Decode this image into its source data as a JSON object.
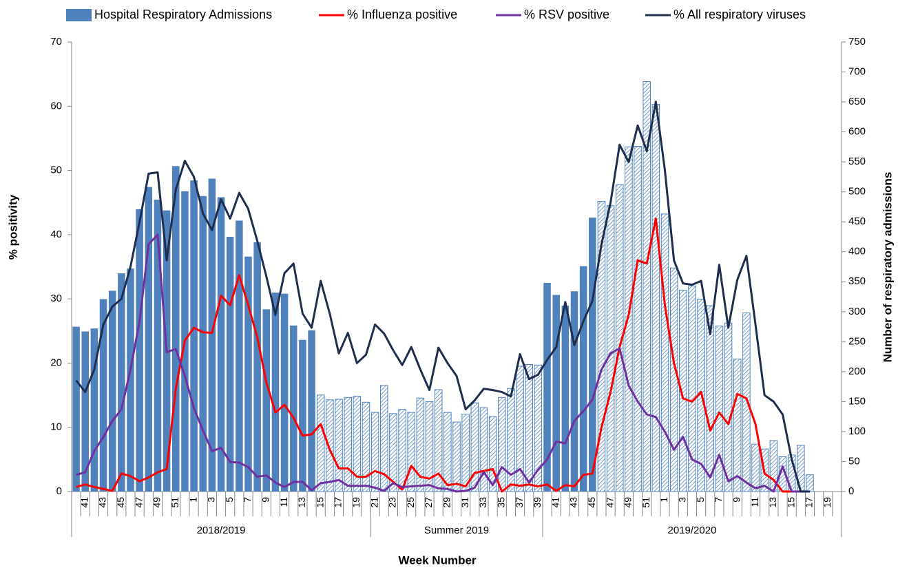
{
  "chart_data": {
    "type": "combo",
    "xlabel": "Week Number",
    "ylabel": "% positivity",
    "y2label": "Number of respiratory admissions",
    "ylim": [
      0,
      70
    ],
    "yticks": [
      0,
      10,
      20,
      30,
      40,
      50,
      60,
      70
    ],
    "y2lim": [
      0,
      750
    ],
    "y2ticks": [
      0,
      50,
      100,
      150,
      200,
      250,
      300,
      350,
      400,
      450,
      500,
      550,
      600,
      650,
      700,
      750
    ],
    "legend": "top",
    "categories": [
      null,
      "41",
      null,
      "43",
      null,
      "45",
      null,
      "47",
      null,
      "49",
      null,
      "51",
      null,
      "1",
      null,
      "3",
      null,
      "5",
      null,
      "7",
      null,
      "9",
      null,
      "11",
      null,
      "13",
      null,
      "15",
      null,
      "17",
      null,
      "19",
      null,
      "21",
      null,
      "23",
      null,
      "25",
      null,
      "27",
      null,
      "29",
      null,
      "31",
      null,
      "33",
      null,
      "35",
      null,
      "37",
      null,
      "39",
      null,
      "41",
      null,
      "43",
      null,
      "45",
      null,
      "47",
      null,
      "49",
      null,
      "51",
      null,
      "1",
      null,
      "3",
      null,
      "5",
      null,
      "7",
      null,
      "9",
      null,
      "11",
      null,
      "13",
      null,
      "15",
      null,
      "17",
      null,
      "19",
      null
    ],
    "groups": [
      {
        "name": "2018/2019",
        "count": 33
      },
      {
        "name": "Summer 2019",
        "count": 19
      },
      {
        "name": "2019/2020",
        "count": 33
      }
    ],
    "series": [
      {
        "name": "Hospital Respiratory Admissions",
        "type": "bar",
        "axis": "y2",
        "color": "#4f81bd",
        "values": [
          275,
          267,
          272,
          321,
          335,
          364,
          372,
          471,
          508,
          487,
          469,
          543,
          501,
          519,
          493,
          522,
          491,
          425,
          452,
          392,
          416,
          304,
          332,
          330,
          277,
          253,
          269,
          161,
          153,
          154,
          157,
          159,
          149,
          132,
          177,
          130,
          137,
          132,
          156,
          150,
          170,
          132,
          116,
          129,
          148,
          140,
          125,
          157,
          172,
          209,
          212,
          211,
          348,
          328,
          310,
          334,
          376,
          457,
          484,
          477,
          512,
          575,
          576,
          684,
          646,
          463,
          373,
          336,
          343,
          321,
          310,
          276,
          281,
          221,
          298,
          79,
          71,
          85,
          58,
          61,
          77,
          28,
          null,
          null,
          null
        ],
        "hatched": [
          false,
          false,
          false,
          false,
          false,
          false,
          false,
          false,
          false,
          false,
          false,
          false,
          false,
          false,
          false,
          false,
          false,
          false,
          false,
          false,
          false,
          false,
          false,
          false,
          false,
          false,
          false,
          true,
          true,
          true,
          true,
          true,
          true,
          true,
          true,
          true,
          true,
          true,
          true,
          true,
          true,
          true,
          true,
          true,
          true,
          true,
          true,
          true,
          true,
          true,
          true,
          true,
          false,
          false,
          false,
          false,
          false,
          false,
          true,
          true,
          true,
          true,
          true,
          true,
          true,
          true,
          true,
          true,
          true,
          true,
          true,
          true,
          true,
          true,
          true,
          true,
          true,
          true,
          true,
          true,
          true,
          true,
          true,
          true,
          true
        ]
      },
      {
        "name": "% Influenza positive",
        "type": "line",
        "color": "#ff0000",
        "values": [
          0.7,
          1.1,
          0.7,
          0.4,
          0.1,
          2.8,
          2.4,
          1.6,
          2.2,
          3,
          3.5,
          16,
          23.5,
          25.5,
          24.8,
          24.7,
          30.5,
          29,
          33.7,
          29,
          24,
          17,
          12.3,
          13.5,
          11.5,
          8.7,
          8.9,
          10.5,
          6.5,
          3.6,
          3.6,
          2.3,
          2.3,
          3.2,
          2.7,
          1.5,
          0.3,
          4,
          2.3,
          2,
          2.8,
          1,
          1.2,
          0.8,
          2.9,
          3.2,
          3.5,
          0,
          1.1,
          0.9,
          1.1,
          0.8,
          1.1,
          0.1,
          1,
          0.8,
          2.6,
          2.8,
          10,
          15.5,
          22.5,
          27.5,
          36,
          35.5,
          42.5,
          29,
          20,
          14.5,
          14,
          15.5,
          9.5,
          12.3,
          10.5,
          15.2,
          14.5,
          10.5,
          2.8,
          1.8,
          0,
          0,
          0,
          0,
          null,
          null,
          null
        ]
      },
      {
        "name": "% RSV positive",
        "type": "line",
        "color": "#7030a0",
        "values": [
          2.6,
          3,
          6.3,
          8.5,
          11,
          12.8,
          19,
          26.5,
          38.5,
          40,
          21.7,
          22.2,
          18,
          13,
          9.5,
          6.3,
          6.8,
          4.6,
          4.5,
          3.8,
          2.3,
          2.5,
          1.4,
          0.7,
          1.5,
          1.5,
          0.2,
          1.3,
          1.5,
          1.8,
          0.9,
          0.9,
          0.9,
          0.6,
          0.1,
          1.3,
          0.7,
          0.8,
          0.9,
          1,
          0.5,
          0.4,
          0,
          0.1,
          0.6,
          3,
          1,
          3.8,
          2.6,
          3.5,
          1.4,
          3.4,
          5,
          7.8,
          7.5,
          11,
          12.5,
          14.3,
          19,
          21.5,
          22.3,
          16.5,
          14,
          12,
          11.6,
          9.3,
          6.5,
          8.5,
          5,
          4.3,
          2.2,
          5.7,
          1.6,
          2.4,
          1.4,
          0.5,
          0.9,
          0,
          3.9,
          0,
          0,
          0,
          null,
          null,
          null
        ]
      },
      {
        "name": "% All respiratory viruses",
        "type": "line",
        "color": "#1f2d4e",
        "values": [
          17.3,
          15.5,
          19,
          26,
          28.8,
          30,
          35,
          42,
          49.5,
          49.7,
          36,
          47,
          51.5,
          49,
          43.3,
          40.7,
          45.5,
          42.5,
          46.5,
          44,
          39,
          33.5,
          27.5,
          34,
          35.5,
          27.7,
          25.5,
          32.8,
          27.7,
          21.5,
          24.7,
          20,
          21.3,
          26,
          24.6,
          22,
          19.7,
          22.5,
          19,
          15.8,
          22.4,
          20,
          18,
          12.8,
          14.2,
          16,
          15.8,
          15.5,
          14.8,
          21.4,
          17.5,
          18.2,
          20.5,
          22.5,
          29.5,
          22.8,
          26.5,
          29.7,
          38.5,
          45,
          54,
          51.3,
          57,
          53,
          60.7,
          50,
          36,
          32.4,
          32.2,
          32.8,
          24.5,
          35.3,
          25.5,
          33,
          36.7,
          26,
          15,
          14,
          12,
          5,
          0,
          0,
          null,
          null,
          null
        ]
      }
    ]
  }
}
